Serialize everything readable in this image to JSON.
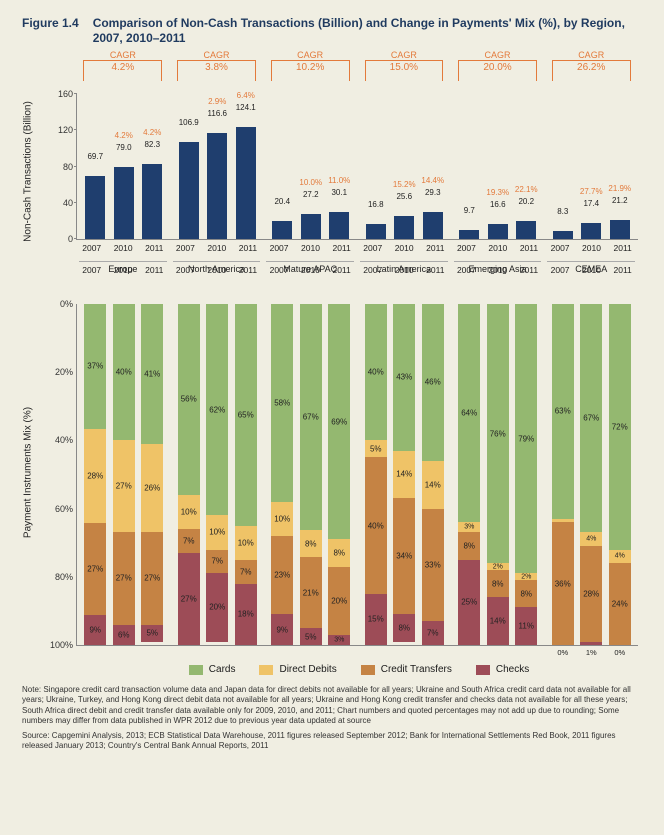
{
  "figure_number": "Figure 1.4",
  "figure_title": "Comparison of Non-Cash Transactions (Billion) and Change in Payments' Mix (%), by Region, 2007, 2010–2011",
  "colors": {
    "bar_top": "#1f3e6e",
    "cards": "#94b870",
    "direct_debits": "#efc367",
    "credit_transfers": "#c58344",
    "checks": "#9d4c57",
    "accent": "#e37a3b",
    "bg": "#f0eee2"
  },
  "top_chart": {
    "y_label": "Non-Cash Transactions\n(Billion)",
    "y_max": 160,
    "y_ticks": [
      0,
      40,
      80,
      120,
      160
    ],
    "cagr_label": "CAGR",
    "regions": [
      {
        "name": "Europe",
        "cagr": "4.2%",
        "years": [
          "2007",
          "2010",
          "2011"
        ],
        "values": [
          69.7,
          79.0,
          82.3
        ],
        "growth": [
          "",
          "4.2%",
          "4.2%"
        ]
      },
      {
        "name": "North America",
        "cagr": "3.8%",
        "years": [
          "2007",
          "2010",
          "2011"
        ],
        "values": [
          106.9,
          116.6,
          124.1
        ],
        "growth": [
          "",
          "2.9%",
          "6.4%"
        ]
      },
      {
        "name": "Mature APAC",
        "cagr": "10.2%",
        "years": [
          "2007",
          "2010",
          "2011"
        ],
        "values": [
          20.4,
          27.2,
          30.1
        ],
        "growth": [
          "",
          "10.0%",
          "11.0%"
        ]
      },
      {
        "name": "Latin America",
        "cagr": "15.0%",
        "years": [
          "2007",
          "2010",
          "2011"
        ],
        "values": [
          16.8,
          25.6,
          29.3
        ],
        "growth": [
          "",
          "15.2%",
          "14.4%"
        ]
      },
      {
        "name": "Emerging Asia",
        "cagr": "20.0%",
        "years": [
          "2007",
          "2010",
          "2011"
        ],
        "values": [
          9.7,
          16.6,
          20.2
        ],
        "growth": [
          "",
          "19.3%",
          "22.1%"
        ]
      },
      {
        "name": "CEMEA",
        "cagr": "26.2%",
        "years": [
          "2007",
          "2010",
          "2011"
        ],
        "values": [
          8.3,
          17.4,
          21.2
        ],
        "growth": [
          "",
          "27.7%",
          "21.9%"
        ]
      }
    ]
  },
  "bottom_chart": {
    "y_label": "Payment Instruments Mix\n(%)",
    "y_ticks": [
      0,
      20,
      40,
      60,
      80,
      100
    ],
    "segments": [
      "cards",
      "direct_debits",
      "credit_transfers",
      "checks"
    ],
    "regions": [
      {
        "name": "Europe",
        "years": [
          "2007",
          "2010",
          "2011"
        ],
        "stacks": [
          {
            "cards": 37,
            "direct_debits": 28,
            "credit_transfers": 27,
            "checks": 9,
            "labels": {
              "cards": "37%",
              "direct_debits": "28%",
              "credit_transfers": "27%",
              "checks": "9%"
            }
          },
          {
            "cards": 40,
            "direct_debits": 27,
            "credit_transfers": 27,
            "checks": 6,
            "labels": {
              "cards": "40%",
              "direct_debits": "27%",
              "credit_transfers": "27%",
              "checks": "6%"
            }
          },
          {
            "cards": 41,
            "direct_debits": 26,
            "credit_transfers": 27,
            "checks": 5,
            "labels": {
              "cards": "41%",
              "direct_debits": "26%",
              "credit_transfers": "27%",
              "checks": "5%"
            }
          }
        ]
      },
      {
        "name": "North America",
        "years": [
          "2007",
          "2010",
          "2011"
        ],
        "stacks": [
          {
            "cards": 56,
            "direct_debits": 10,
            "credit_transfers": 7,
            "checks": 27,
            "labels": {
              "cards": "56%",
              "direct_debits": "10%",
              "credit_transfers": "7%",
              "checks": "27%"
            }
          },
          {
            "cards": 62,
            "direct_debits": 10,
            "credit_transfers": 7,
            "checks": 20,
            "labels": {
              "cards": "62%",
              "direct_debits": "10%",
              "credit_transfers": "7%",
              "checks": "20%"
            }
          },
          {
            "cards": 65,
            "direct_debits": 10,
            "credit_transfers": 7,
            "checks": 18,
            "labels": {
              "cards": "65%",
              "direct_debits": "10%",
              "credit_transfers": "7%",
              "checks": "18%"
            }
          }
        ]
      },
      {
        "name": "Mature APAC",
        "years": [
          "2007",
          "2010",
          "2011"
        ],
        "stacks": [
          {
            "cards": 58,
            "direct_debits": 10,
            "credit_transfers": 23,
            "checks": 9,
            "labels": {
              "cards": "58%",
              "direct_debits": "10%",
              "credit_transfers": "23%",
              "checks": "9%"
            }
          },
          {
            "cards": 67,
            "direct_debits": 8,
            "credit_transfers": 21,
            "checks": 5,
            "labels": {
              "cards": "67%",
              "direct_debits": "8%",
              "credit_transfers": "21%",
              "checks": "5%"
            }
          },
          {
            "cards": 69,
            "direct_debits": 8,
            "credit_transfers": 20,
            "checks": 3,
            "labels": {
              "cards": "69%",
              "direct_debits": "8%",
              "credit_transfers": "20%",
              "checks": "3%"
            }
          }
        ]
      },
      {
        "name": "Latin America",
        "years": [
          "2007",
          "2010",
          "2011"
        ],
        "stacks": [
          {
            "cards": 40,
            "direct_debits": 5,
            "credit_transfers": 40,
            "checks": 15,
            "labels": {
              "cards": "40%",
              "direct_debits": "5%",
              "credit_transfers": "40%",
              "checks": "15%"
            }
          },
          {
            "cards": 43,
            "direct_debits": 14,
            "credit_transfers": 34,
            "checks": 8,
            "labels": {
              "cards": "43%",
              "direct_debits": "14%",
              "credit_transfers": "34%",
              "checks": "8%"
            }
          },
          {
            "cards": 46,
            "direct_debits": 14,
            "credit_transfers": 33,
            "checks": 7,
            "labels": {
              "cards": "46%",
              "direct_debits": "14%",
              "credit_transfers": "33%",
              "checks": "7%"
            }
          }
        ]
      },
      {
        "name": "Emerging Asia",
        "years": [
          "2007",
          "2010",
          "2011"
        ],
        "stacks": [
          {
            "cards": 64,
            "direct_debits": 3,
            "credit_transfers": 8,
            "checks": 25,
            "labels": {
              "cards": "64%",
              "direct_debits": "3%",
              "credit_transfers": "8%",
              "checks": "25%"
            }
          },
          {
            "cards": 76,
            "direct_debits": 2,
            "credit_transfers": 8,
            "checks": 14,
            "labels": {
              "cards": "76%",
              "direct_debits": "2%",
              "credit_transfers": "8%",
              "checks": "14%"
            }
          },
          {
            "cards": 79,
            "direct_debits": 2,
            "credit_transfers": 8,
            "checks": 11,
            "labels": {
              "cards": "79%",
              "direct_debits": "2%",
              "credit_transfers": "8%",
              "checks": "11%"
            }
          }
        ]
      },
      {
        "name": "CEMEA",
        "years": [
          "2007",
          "2010",
          "2011"
        ],
        "stacks": [
          {
            "cards": 63,
            "direct_debits": 1,
            "credit_transfers": 36,
            "checks": 0,
            "labels": {
              "cards": "63%",
              "direct_debits": "1%",
              "credit_transfers": "36%",
              "checks": "0%"
            }
          },
          {
            "cards": 67,
            "direct_debits": 4,
            "credit_transfers": 28,
            "checks": 1,
            "labels": {
              "cards": "67%",
              "direct_debits": "4%",
              "credit_transfers": "28%",
              "checks": "1%"
            }
          },
          {
            "cards": 72,
            "direct_debits": 4,
            "credit_transfers": 24,
            "checks": 0,
            "labels": {
              "cards": "72%",
              "direct_debits": "4%",
              "credit_transfers": "24%",
              "checks": "0%"
            }
          }
        ]
      }
    ]
  },
  "legend": {
    "cards": "Cards",
    "direct_debits": "Direct Debits",
    "credit_transfers": "Credit Transfers",
    "checks": "Checks"
  },
  "note": "Note: Singapore credit card transaction volume data and Japan data for direct debits not available for all years; Ukraine and South Africa credit card data not available for all years; Ukraine, Turkey, and Hong Kong direct debit data not available for all years; Ukraine and Hong Kong credit transfer and checks data not available for all these years; South Africa direct debit and credit transfer data available only for 2009, 2010, and 2011; Chart numbers and quoted percentages may not add up due to rounding; Some numbers may differ from data published in WPR 2012 due to previous year data updated at source",
  "source": "Source: Capgemini Analysis, 2013; ECB Statistical Data Warehouse, 2011 figures released September 2012; Bank for International Settlements Red Book, 2011 figures released January 2013; Country's Central Bank Annual Reports, 2011"
}
